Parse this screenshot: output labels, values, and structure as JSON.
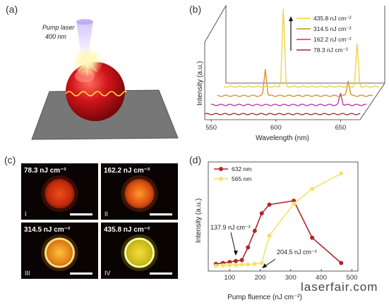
{
  "panels": {
    "a": {
      "letter": "(a)",
      "caption_line1": "Pump laser",
      "caption_line2": "400 nm"
    },
    "b": {
      "letter": "(b)",
      "legend": [
        {
          "label": "435.8 nJ cm⁻²",
          "color": "#f2cf3a"
        },
        {
          "label": "314.5 nJ cm⁻²",
          "color": "#d98a1e"
        },
        {
          "label": "162.2 nJ cm⁻²",
          "color": "#b3329a"
        },
        {
          "label": "78.3 nJ cm⁻²",
          "color": "#a02428"
        }
      ]
    },
    "c": {
      "letter": "(c)",
      "tiles": [
        {
          "label": "78.3 nJ cm⁻²",
          "roman": "I",
          "core": "#e8501a",
          "edge": "#c22a0c",
          "ring": "none"
        },
        {
          "label": "162.2 nJ cm⁻²",
          "roman": "II",
          "core": "#ff9a28",
          "edge": "#d84a10",
          "ring": "none"
        },
        {
          "label": "314.5 nJ cm⁻²",
          "roman": "III",
          "core": "#ffc23c",
          "edge": "#e07a14",
          "ring": "#ffe07a"
        },
        {
          "label": "435.8 nJ cm⁻²",
          "roman": "IV",
          "core": "#f5de3a",
          "edge": "#c8b81a",
          "ring": "#ffff99"
        }
      ]
    },
    "d": {
      "letter": "(d)",
      "annotations": [
        "137.9 nJ cm⁻²",
        "204.5 nJ cm⁻²"
      ]
    }
  },
  "chart_data": [
    {
      "type": "line",
      "panel": "b",
      "xlabel": "Wavelength (nm)",
      "ylabel": "Intensity (a.u.)",
      "xticks": [
        550,
        600,
        650
      ],
      "xlim": [
        545,
        665
      ],
      "series": [
        {
          "name": "78.3 nJ cm⁻²",
          "color": "#a02428",
          "peaks": []
        },
        {
          "name": "162.2 nJ cm⁻²",
          "color": "#b3329a",
          "peaks": [
            {
              "x": 645,
              "h": 0.15
            }
          ]
        },
        {
          "name": "314.5 nJ cm⁻²",
          "color": "#d98a1e",
          "peaks": [
            {
              "x": 582,
              "h": 0.35
            },
            {
              "x": 646,
              "h": 0.2
            }
          ]
        },
        {
          "name": "435.8 nJ cm⁻²",
          "color": "#f2cf3a",
          "peaks": [
            {
              "x": 591,
              "h": 1.0
            },
            {
              "x": 648,
              "h": 0.55
            }
          ]
        }
      ]
    },
    {
      "type": "line",
      "panel": "d",
      "xlabel": "Pump fluence (nJ cm⁻²)",
      "ylabel": "Intensity (a.u.)",
      "xticks": [
        100,
        200,
        300,
        400,
        500
      ],
      "xlim": [
        30,
        520
      ],
      "ylim": [
        0,
        1.05
      ],
      "series": [
        {
          "name": "632 nm",
          "color": "#b0262a",
          "x": [
            55,
            78,
            100,
            120,
            140,
            160,
            182,
            205,
            230,
            310,
            370,
            465
          ],
          "y": [
            0.03,
            0.04,
            0.05,
            0.06,
            0.07,
            0.2,
            0.37,
            0.55,
            0.64,
            0.68,
            0.3,
            0.04
          ]
        },
        {
          "name": "565 nm",
          "color": "#f3e26b",
          "x": [
            55,
            78,
            100,
            120,
            140,
            160,
            182,
            205,
            230,
            310,
            370,
            465
          ],
          "y": [
            0.01,
            0.015,
            0.02,
            0.02,
            0.025,
            0.025,
            0.03,
            0.04,
            0.32,
            0.65,
            0.8,
            0.96
          ]
        }
      ]
    }
  ],
  "watermark": "laserfair.com"
}
